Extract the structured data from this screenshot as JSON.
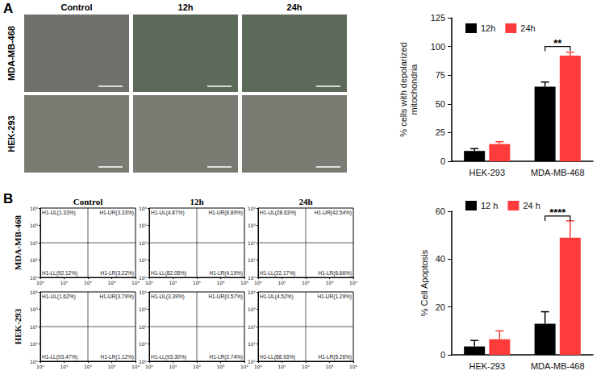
{
  "panel_letters": [
    "A",
    "B"
  ],
  "micrographs": {
    "columns": [
      "Control",
      "12h",
      "24h"
    ],
    "rows": [
      "MDA-MB-468",
      "HEK-293"
    ]
  },
  "flow_cytometry": {
    "columns": [
      "Control",
      "12h",
      "24h"
    ],
    "rows": [
      "MDA-MB-468",
      "HEK-293"
    ],
    "log": true,
    "xlim": [
      1,
      10000
    ],
    "xticks": [
      {
        "value": 1,
        "label": "10⁰"
      },
      {
        "value": 10,
        "label": "10¹"
      },
      {
        "value": 100,
        "label": "10²"
      },
      {
        "value": 1000,
        "label": "10³"
      },
      {
        "value": 10000,
        "label": "10⁴"
      }
    ],
    "ylim": [
      1,
      10000
    ],
    "yticks": [
      {
        "value": 1,
        "label": "10⁰"
      },
      {
        "value": 10,
        "label": "10¹"
      },
      {
        "value": 100,
        "label": "10²"
      },
      {
        "value": 1000,
        "label": "10³"
      },
      {
        "value": 10000,
        "label": "10⁴"
      }
    ],
    "gate": {
      "x": 100,
      "y": 100
    },
    "quadrants": [
      [
        {
          "UL": "H1-UL(1.33%)",
          "UR": "H1-UR(3.33%)",
          "LL": "H1-LL(92.12%)",
          "LR": "H1-LR(3.22%)"
        },
        {
          "UL": "H1-UL(4.87%)",
          "UR": "H1-UR(8.89%)",
          "LL": "H1-LL(82.05%)",
          "LR": "H1-LR(4.19%)"
        },
        {
          "UL": "H1-UL(28.63%)",
          "UR": "H1-UR(42.54%)",
          "LL": "H1-LL(22.17%)",
          "LR": "H1-LR(6.66%)"
        }
      ],
      [
        {
          "UL": "H1-UL(1.62%)",
          "UR": "H1-UR(3.79%)",
          "LL": "H1-LL(93.47%)",
          "LR": "H1-LR(1.12%)"
        },
        {
          "UL": "H1-UL(3.39%)",
          "UR": "H1-UR(0.57%)",
          "LL": "H1-LL(93.30%)",
          "LR": "H1-LR(2.74%)"
        },
        {
          "UL": "H1-UL(4.52%)",
          "UR": "H1-UR(1.29%)",
          "LL": "H1-LL(88.93%)",
          "LR": "H1-LR(5.26%)"
        }
      ]
    ]
  },
  "chart_data": [
    {
      "type": "bar",
      "ylabel": "% cells with depolarized mitochondria",
      "categories": [
        "HEK-293",
        "MDA-MB-468"
      ],
      "series": [
        {
          "name": "12h",
          "color": "#000000",
          "values": [
            9,
            65
          ],
          "errors": [
            2,
            4
          ]
        },
        {
          "name": "24h",
          "color": "#ff3b3b",
          "values": [
            15,
            92
          ],
          "errors": [
            2,
            3
          ]
        }
      ],
      "ylim": [
        0,
        125
      ],
      "yticks": [
        0,
        25,
        50,
        75,
        100,
        125
      ],
      "grid": false,
      "legend": "upper left",
      "annotations": [
        {
          "text": "**",
          "category": "MDA-MB-468",
          "y": 100
        }
      ]
    },
    {
      "type": "bar",
      "ylabel": "% Cell Apoptosis",
      "categories": [
        "HEK-293",
        "MDA-MB-468"
      ],
      "series": [
        {
          "name": "12 h",
          "color": "#000000",
          "values": [
            3.5,
            13
          ],
          "errors": [
            2.5,
            5
          ]
        },
        {
          "name": "24 h",
          "color": "#ff3b3b",
          "values": [
            6.5,
            49
          ],
          "errors": [
            3.5,
            7
          ]
        }
      ],
      "ylim": [
        0,
        60
      ],
      "yticks": [
        0,
        20,
        40,
        60
      ],
      "grid": false,
      "legend": "upper left",
      "annotations": [
        {
          "text": "****",
          "category": "MDA-MB-468",
          "y": 58
        }
      ]
    }
  ]
}
